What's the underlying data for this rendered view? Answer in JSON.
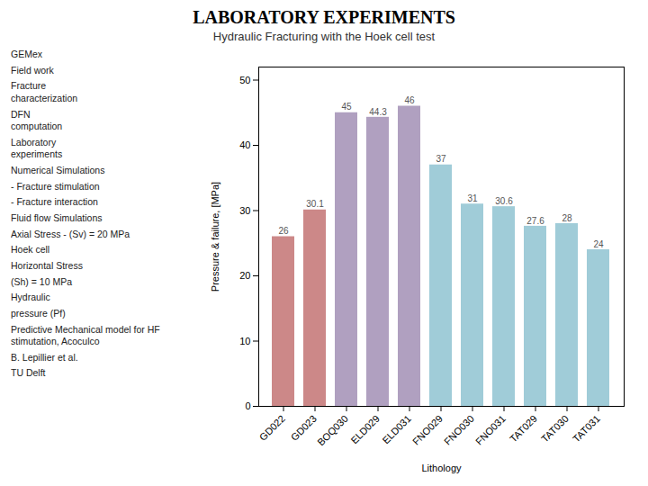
{
  "chart_data": {
    "type": "bar",
    "title": "LABORATORY EXPERIMENTS",
    "subtitle": "Hydraulic Fracturing with the Hoek cell test",
    "annotations": [
      "GEMex",
      "Field work",
      "Fracture\ncharacterization",
      "DFN\ncomputation",
      "Laboratory\nexperiments",
      "Numerical Simulations",
      "- Fracture stimulation",
      "- Fracture interaction",
      "Fluid flow Simulations",
      "Axial Stress - (Sv) = 20 MPa",
      "Hoek cell",
      "Horizontal Stress",
      "(Sh) = 10 MPa",
      "Hydraulic",
      "pressure (Pf)",
      "Predictive Mechanical model for HF stimutation, Acoculco",
      "B. Lepillier et al.",
      "TU Delft"
    ],
    "categories": [
      "GD022",
      "GD023",
      "BOQ030",
      "ELD029",
      "ELD031",
      "FNO029",
      "FNO030",
      "FNO031",
      "TAT029",
      "TAT030",
      "TAT031"
    ],
    "values": [
      26,
      30.1,
      45,
      44.3,
      46,
      37,
      31,
      30.6,
      27.6,
      28,
      24
    ],
    "colors": [
      "#cc8888",
      "#cc8888",
      "#b0a0c0",
      "#b0a0c0",
      "#b0a0c0",
      "#a0ccd8",
      "#a0ccd8",
      "#a0ccd8",
      "#a0ccd8",
      "#a0ccd8",
      "#a0ccd8"
    ],
    "x_label": "Lithology",
    "y_label": "Pressure & failure, [MPa]",
    "ylim": [
      0,
      52
    ],
    "yticks": [
      0,
      10,
      20,
      30,
      40,
      50
    ],
    "data_labels": true,
    "grid": false
  }
}
